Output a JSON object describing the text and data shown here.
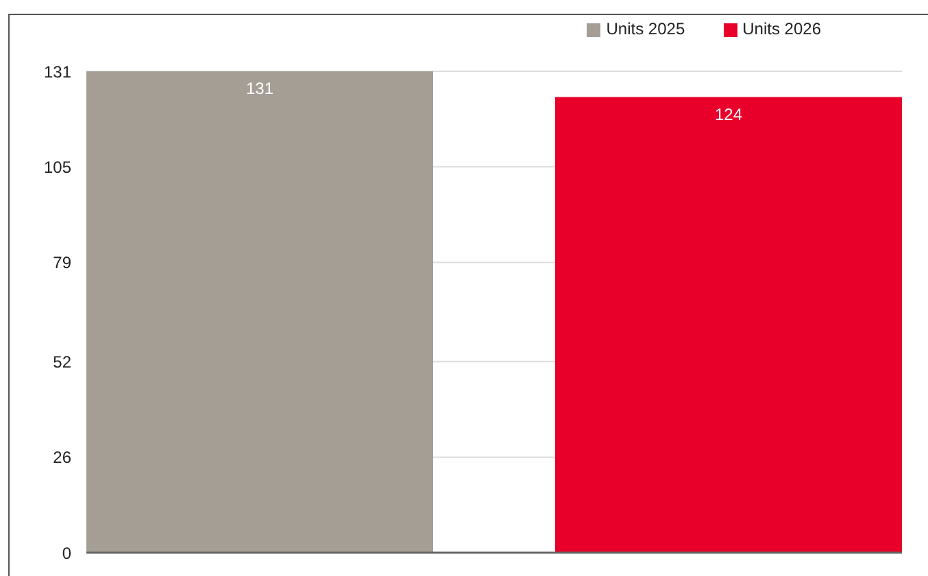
{
  "chart_data": {
    "type": "bar",
    "categories": [
      null
    ],
    "series": [
      {
        "name": "Units 2025",
        "color": "#a59e95",
        "values": [
          131
        ]
      },
      {
        "name": "Units 2026",
        "color": "#e8002a",
        "values": [
          124
        ]
      }
    ],
    "ylim": [
      0,
      131
    ],
    "yticks": [
      0,
      26,
      52,
      79,
      105,
      131
    ],
    "grid": "y",
    "legend": "top right",
    "data_labels": true
  }
}
